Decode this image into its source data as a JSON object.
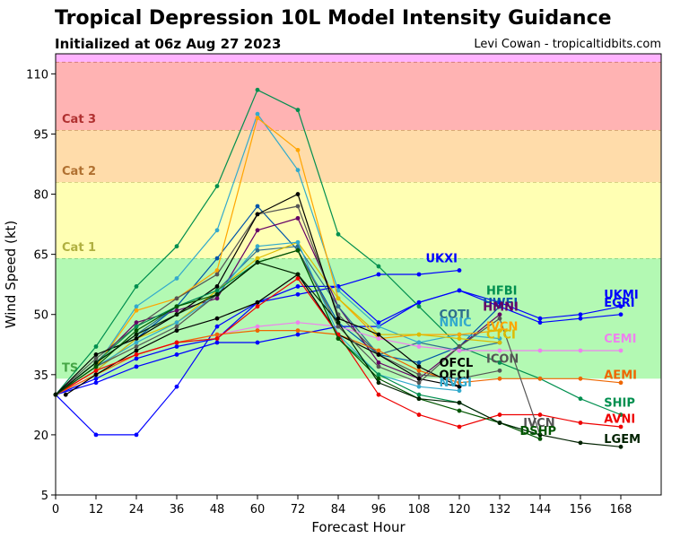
{
  "header": {
    "title": "Tropical Depression 10L Model Intensity Guidance",
    "subtitle": "Initialized at 06z Aug 27 2023",
    "credit": "Levi Cowan - tropicaltidbits.com"
  },
  "chart_data": {
    "type": "line",
    "xlabel": "Forecast Hour",
    "ylabel": "Wind Speed (kt)",
    "xlim": [
      0,
      180
    ],
    "ylim": [
      5,
      115
    ],
    "xticks": [
      0,
      12,
      24,
      36,
      48,
      60,
      72,
      84,
      96,
      108,
      120,
      132,
      144,
      156,
      168
    ],
    "yticks": [
      5,
      20,
      35,
      50,
      65,
      80,
      95,
      110
    ],
    "bands": [
      {
        "label": "TS",
        "from": 34,
        "to": 64,
        "fill": "#b3f9b3",
        "line": "#5cb85c",
        "text_color": "#46a646"
      },
      {
        "label": "Cat 1",
        "from": 64,
        "to": 83,
        "fill": "#ffffb3",
        "line": "#b0b05a",
        "text_color": "#b0b040"
      },
      {
        "label": "Cat 2",
        "from": 83,
        "to": 96,
        "fill": "#ffdcaa",
        "line": "#b07840",
        "text_color": "#b07030"
      },
      {
        "label": "Cat 3",
        "from": 96,
        "to": 113,
        "fill": "#ffb3b3",
        "line": "#b05050",
        "text_color": "#b03030"
      },
      {
        "label": "",
        "from": 113,
        "to": 115,
        "fill": "#ffb3ff",
        "line": "#b050b0",
        "text_color": "#b050b0"
      }
    ],
    "series": [
      {
        "name": "UKXI",
        "color": "#0000ff",
        "x": [
          0,
          12,
          24,
          36,
          48,
          60,
          72,
          84,
          96,
          108,
          120
        ],
        "y": [
          30,
          20,
          20,
          32,
          47,
          53,
          55,
          57,
          60,
          60,
          61
        ],
        "label_at": [
          110,
          63
        ]
      },
      {
        "name": "HFBI",
        "color": "#008f4f",
        "x": [
          0,
          12,
          24,
          36,
          48,
          60,
          72,
          84,
          96,
          108,
          120,
          132,
          144,
          156,
          168
        ],
        "y": [
          30,
          42,
          57,
          67,
          82,
          106,
          101,
          70,
          62,
          52,
          42,
          38,
          34,
          29,
          25
        ],
        "label_at": [
          128,
          55
        ]
      },
      {
        "name": "UKMI",
        "color": "#0000ff",
        "x": [
          0,
          12,
          24,
          36,
          48,
          60,
          72,
          84,
          96,
          108,
          120,
          132,
          144,
          156,
          168
        ],
        "y": [
          30,
          33,
          37,
          40,
          43,
          43,
          45,
          47,
          47,
          53,
          56,
          52,
          48,
          49,
          50
        ],
        "label_at": [
          163,
          54
        ]
      },
      {
        "name": "EGRI",
        "color": "#0000ff",
        "x": [
          0,
          12,
          24,
          36,
          48,
          60,
          72,
          84,
          96,
          108,
          120,
          132,
          144,
          156,
          168
        ],
        "y": [
          30,
          34,
          39,
          42,
          44,
          53,
          57,
          57,
          48,
          53,
          56,
          53,
          49,
          50,
          52
        ],
        "label_at": [
          163,
          52
        ]
      },
      {
        "name": "HWFI",
        "color": "#0055aa",
        "x": [
          0,
          12,
          24,
          36,
          48,
          60,
          72,
          84,
          96,
          108,
          120,
          132
        ],
        "y": [
          30,
          36,
          44,
          52,
          64,
          77,
          66,
          48,
          40,
          38,
          42,
          52
        ],
        "label_at": [
          127,
          52
        ]
      },
      {
        "name": "HMNI",
        "color": "#660066",
        "x": [
          0,
          12,
          24,
          36,
          48,
          60,
          72,
          84,
          96,
          108,
          120,
          132
        ],
        "y": [
          30,
          38,
          48,
          51,
          54,
          71,
          74,
          52,
          38,
          34,
          42,
          50
        ],
        "label_at": [
          127,
          51
        ]
      },
      {
        "name": "COTI",
        "color": "#2e6e8e",
        "x": [
          0,
          12,
          24,
          36,
          48,
          60,
          72,
          84,
          96,
          108,
          120,
          132
        ],
        "y": [
          30,
          38,
          45,
          52,
          56,
          66,
          67,
          52,
          40,
          43,
          41,
          43
        ],
        "label_at": [
          114,
          49
        ]
      },
      {
        "name": "NNIC",
        "color": "#33aacc",
        "x": [
          0,
          12,
          24,
          36,
          48,
          60,
          72,
          84,
          96,
          108,
          120,
          132
        ],
        "y": [
          30,
          37,
          52,
          59,
          71,
          100,
          86,
          56,
          47,
          43,
          45,
          44
        ],
        "label_at": [
          114,
          47
        ]
      },
      {
        "name": "IVCN",
        "color": "#ffa500",
        "x": [
          0,
          12,
          24,
          36,
          48,
          60,
          72,
          84,
          96,
          108,
          120,
          132
        ],
        "y": [
          30,
          37,
          51,
          54,
          61,
          99,
          91,
          54,
          44,
          45,
          45,
          46
        ],
        "label_at": [
          128,
          46
        ]
      },
      {
        "name": "CTCI",
        "color": "#ddbb00",
        "x": [
          0,
          12,
          24,
          36,
          48,
          60,
          72,
          84,
          96,
          108,
          120,
          132
        ],
        "y": [
          30,
          36,
          44,
          48,
          56,
          64,
          68,
          54,
          45,
          45,
          44,
          43
        ],
        "label_at": [
          128,
          44
        ]
      },
      {
        "name": "CEMI",
        "color": "#ee82ee",
        "x": [
          0,
          12,
          24,
          36,
          48,
          60,
          72,
          84,
          96,
          108,
          120,
          132,
          144,
          156,
          168
        ],
        "y": [
          30,
          35,
          40,
          43,
          45,
          47,
          48,
          47,
          44,
          42,
          41,
          41,
          41,
          41,
          41
        ],
        "label_at": [
          163,
          43
        ]
      },
      {
        "name": "ICON",
        "color": "#555555",
        "x": [
          0,
          12,
          24,
          36,
          48,
          60,
          72,
          84,
          96,
          108,
          120,
          132
        ],
        "y": [
          30,
          39,
          47,
          54,
          60,
          75,
          77,
          50,
          40,
          35,
          34,
          36
        ],
        "label_at": [
          128,
          38
        ]
      },
      {
        "name": "AEMI",
        "color": "#ee6600",
        "x": [
          0,
          12,
          24,
          36,
          48,
          60,
          72,
          84,
          96,
          108,
          120,
          132,
          144,
          156,
          168
        ],
        "y": [
          30,
          35,
          40,
          43,
          45,
          46,
          46,
          45,
          41,
          36,
          33,
          34,
          34,
          34,
          33
        ],
        "label_at": [
          163,
          34
        ]
      },
      {
        "name": "OFCL",
        "color": "#000000",
        "x": [
          0,
          12,
          24,
          36,
          48,
          60,
          72,
          84,
          96,
          108,
          120
        ],
        "y": [
          30,
          40,
          44,
          50,
          57,
          75,
          80,
          49,
          45,
          37,
          32
        ],
        "label_at": [
          114,
          37
        ]
      },
      {
        "name": "OFCI",
        "color": "#000000",
        "x": [
          3,
          12,
          24,
          36,
          48,
          60,
          72,
          84,
          96,
          108,
          120
        ],
        "y": [
          30,
          35,
          41,
          46,
          49,
          53,
          60,
          45,
          40,
          34,
          32
        ],
        "label_at": [
          114,
          34
        ]
      },
      {
        "name": "NVGI",
        "color": "#33aacc",
        "x": [
          0,
          12,
          24,
          36,
          48,
          60,
          72,
          84,
          96,
          108,
          120
        ],
        "y": [
          30,
          37,
          43,
          48,
          55,
          67,
          68,
          45,
          35,
          32,
          31
        ],
        "label_at": [
          114,
          32
        ]
      },
      {
        "name": "SHIP",
        "color": "#008f4f",
        "x": [
          0,
          12,
          24,
          36,
          48,
          60,
          72,
          84,
          96,
          108,
          120,
          132,
          144
        ],
        "y": [
          30,
          38,
          47,
          52,
          56,
          63,
          66,
          44,
          35,
          30,
          28,
          23,
          20
        ],
        "label_at": [
          163,
          27
        ]
      },
      {
        "name": "AVNI",
        "color": "#ee0000",
        "x": [
          0,
          12,
          24,
          36,
          48,
          60,
          72,
          84,
          96,
          108,
          120,
          132,
          144,
          156,
          168
        ],
        "y": [
          30,
          36,
          40,
          43,
          44,
          52,
          59,
          45,
          30,
          25,
          22,
          25,
          25,
          23,
          22
        ],
        "label_at": [
          163,
          23
        ]
      },
      {
        "name": "IVCN",
        "color": "#555555",
        "x": [
          0,
          12,
          24,
          36,
          48,
          60,
          72,
          84,
          96,
          108,
          120,
          132,
          144
        ],
        "y": [
          30,
          37,
          42,
          47,
          55,
          63,
          66,
          47,
          37,
          33,
          42,
          49,
          20
        ],
        "label_at": [
          139,
          22
        ]
      },
      {
        "name": "DSHP",
        "color": "#005500",
        "x": [
          0,
          12,
          24,
          36,
          48,
          60,
          72,
          84,
          96,
          108,
          120,
          132,
          144
        ],
        "y": [
          30,
          37,
          46,
          52,
          55,
          63,
          66,
          44,
          34,
          29,
          26,
          23,
          19
        ],
        "label_at": [
          138,
          20
        ]
      },
      {
        "name": "LGEM",
        "color": "#002200",
        "x": [
          0,
          12,
          24,
          36,
          48,
          60,
          72,
          84,
          96,
          108,
          120,
          132,
          144,
          156,
          168
        ],
        "y": [
          30,
          38,
          45,
          50,
          55,
          63,
          60,
          48,
          33,
          29,
          28,
          23,
          20,
          18,
          17
        ],
        "label_at": [
          163,
          18
        ]
      }
    ]
  }
}
